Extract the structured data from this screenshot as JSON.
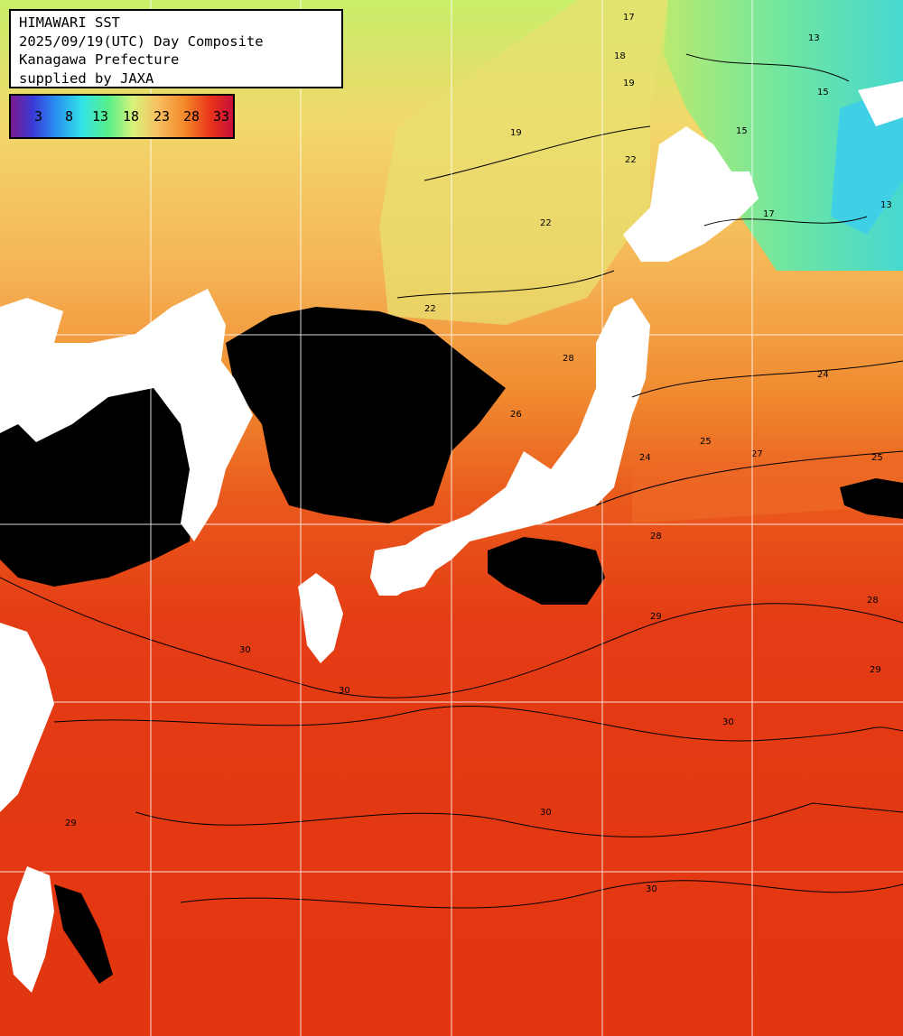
{
  "title_lines": [
    "HIMAWARI SST",
    "2025/09/19(UTC) Day Composite",
    "Kanagawa Prefecture",
    "supplied by JAXA"
  ],
  "colorbar": {
    "labels": [
      "3",
      "8",
      "13",
      "18",
      "23",
      "28",
      "33"
    ],
    "colors": [
      "#7a1a8e",
      "#3a3ad8",
      "#2a8ef0",
      "#33e3e8",
      "#58ef8a",
      "#d8f27a",
      "#f8c060",
      "#f48a2a",
      "#e9321a",
      "#c8103a"
    ]
  },
  "contour_labels": [
    "13",
    "15",
    "17",
    "18",
    "19",
    "22",
    "24",
    "25",
    "26",
    "27",
    "28",
    "29",
    "30"
  ],
  "colors": {
    "land": "#ffffff",
    "cloud_mask": "#000000",
    "grid": "#ffffff",
    "sea_warm": "#e23a12"
  }
}
